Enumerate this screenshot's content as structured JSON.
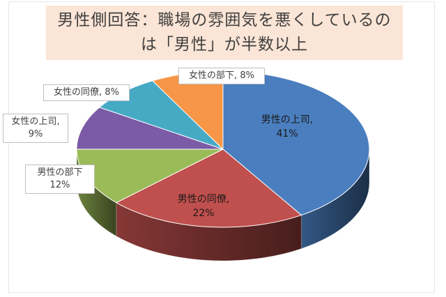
{
  "chart_data": {
    "type": "pie",
    "title_lines": [
      "男性側回答：職場の雰囲気を悪くしているの",
      "は「男性」が半数以上"
    ],
    "slices": [
      {
        "label": "男性の上司",
        "value": 41,
        "color": "#4a7ebf",
        "text": "41%"
      },
      {
        "label": "男性の同僚",
        "value": 22,
        "color": "#c0504d",
        "text": "22%"
      },
      {
        "label": "男性の部下",
        "value": 12,
        "color": "#9bbb59",
        "text": "12%"
      },
      {
        "label": "女性の上司",
        "value": 9,
        "color": "#7b5aa6",
        "text": "9%"
      },
      {
        "label": "女性の同僚",
        "value": 8,
        "color": "#46aac5",
        "text": "8%"
      },
      {
        "label": "女性の部下",
        "value": 8,
        "color": "#f79646",
        "text": "8%"
      }
    ],
    "legend": "none"
  }
}
